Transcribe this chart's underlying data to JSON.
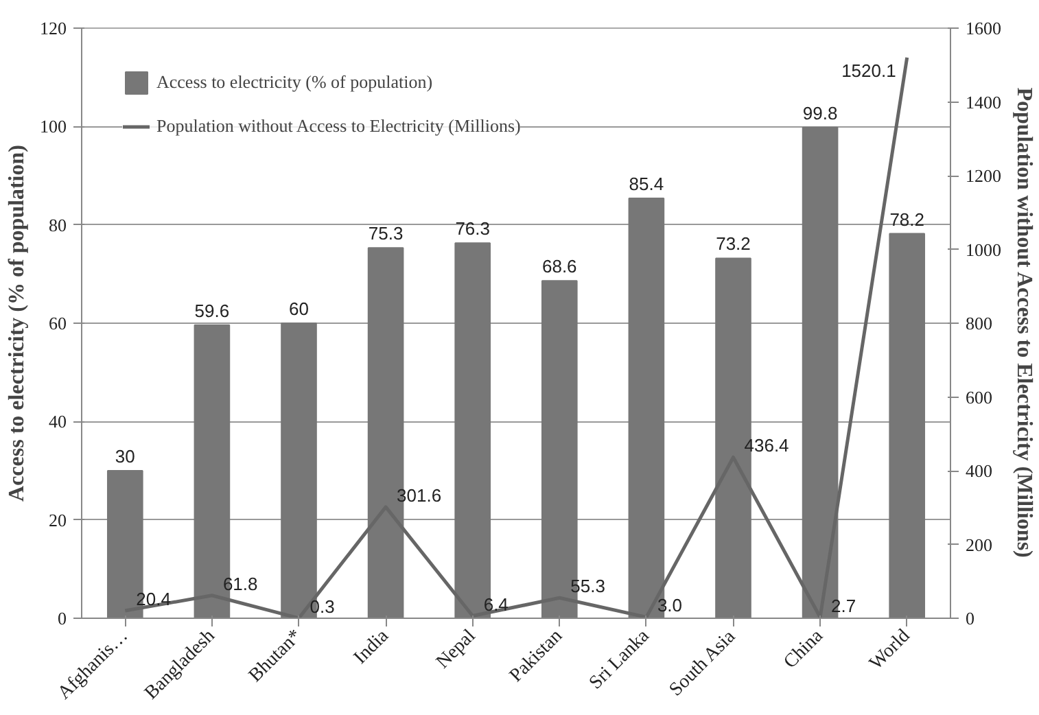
{
  "chart_data": {
    "type": "bar",
    "categories": [
      "Afghanis…",
      "Bangladesh",
      "Bhutan*",
      "India",
      "Nepal",
      "Pakistan",
      "Sri Lanka",
      "South Asia",
      "China",
      "World"
    ],
    "series": [
      {
        "name": "Access to electricity (% of population)",
        "color": "#777777",
        "values": [
          30,
          59.6,
          60,
          75.3,
          76.3,
          68.6,
          85.4,
          73.2,
          99.8,
          78.2
        ],
        "value_labels": [
          "30",
          "59.6",
          "60",
          "75.3",
          "76.3",
          "68.6",
          "85.4",
          "73.2",
          "99.8",
          "78.2"
        ]
      },
      {
        "name": "Population without Access to Electricity (Millions)",
        "type": "line",
        "axis": "y2",
        "color": "#666666",
        "values": [
          20.4,
          61.8,
          0.3,
          301.6,
          6.4,
          55.3,
          3.0,
          436.4,
          2.7,
          1520.1
        ],
        "value_labels": [
          "20.4",
          "61.8",
          "0.3",
          "301.6",
          "6.4",
          "55.3",
          "3.0",
          "436.4",
          "2.7",
          "1520.1"
        ]
      }
    ],
    "ylabel": "Access to electricity (% of population)",
    "y2label": "Population without Access to Electricity (Millions)",
    "ylim": [
      0,
      120
    ],
    "yticks": [
      0,
      20,
      40,
      60,
      80,
      100,
      120
    ],
    "y2lim": [
      0,
      1600
    ],
    "y2ticks": [
      0,
      200,
      400,
      600,
      800,
      1000,
      1200,
      1400,
      1600
    ],
    "grid": "y",
    "legend": "top left"
  }
}
